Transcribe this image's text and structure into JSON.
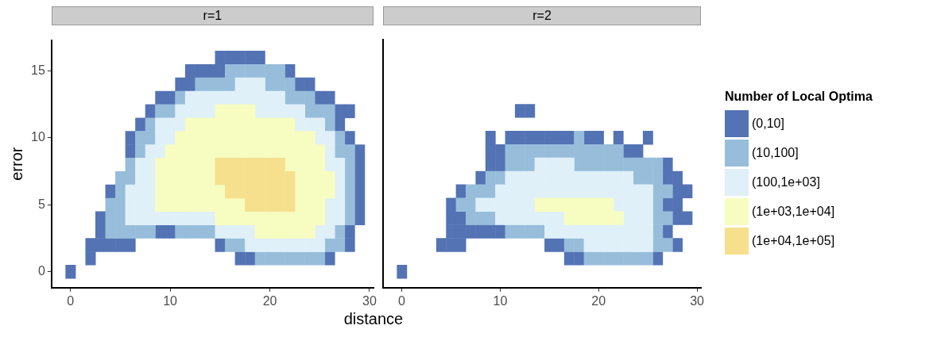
{
  "chart_data": [
    {
      "type": "scatter",
      "title": "r=1",
      "xlabel": "distance",
      "ylabel": "error",
      "marker": "square",
      "grid": false,
      "legend": false,
      "xlim": [
        -1.9,
        30.4
      ],
      "ylim": [
        -1.2,
        17.3
      ],
      "xticks": [
        0,
        10,
        20,
        30
      ],
      "yticks": [
        0,
        5,
        10,
        15
      ],
      "series": [
        {
          "color": "#5473b4",
          "x": [
            15,
            16,
            17,
            18,
            19,
            12,
            13,
            14,
            15,
            22,
            11,
            12,
            23,
            24,
            9,
            10,
            25,
            26,
            8,
            27,
            28,
            7,
            27,
            6,
            28,
            6,
            29,
            29,
            29,
            4,
            29,
            29,
            3,
            29,
            3,
            9,
            10,
            28,
            2,
            3,
            4,
            5,
            6,
            15,
            28,
            2,
            17,
            18,
            26,
            0
          ],
          "values": [
            16,
            16,
            16,
            16,
            16,
            15,
            15,
            15,
            15,
            15,
            14,
            14,
            14,
            14,
            13,
            13,
            13,
            13,
            12,
            12,
            12,
            11,
            11,
            10,
            10,
            9,
            9,
            8,
            7,
            6,
            6,
            5,
            4,
            4,
            3,
            3,
            3,
            3,
            2,
            2,
            2,
            2,
            2,
            2,
            2,
            1,
            1,
            1,
            1,
            0
          ]
        },
        {
          "color": "#97bddb",
          "x": [
            16,
            17,
            18,
            19,
            20,
            21,
            13,
            14,
            15,
            16,
            20,
            21,
            22,
            11,
            22,
            23,
            24,
            9,
            10,
            24,
            25,
            26,
            8,
            26,
            7,
            8,
            27,
            7,
            27,
            28,
            6,
            28,
            5,
            6,
            28,
            5,
            28,
            4,
            5,
            28,
            4,
            5,
            28,
            4,
            5,
            6,
            7,
            8,
            11,
            12,
            13,
            14,
            27,
            16,
            17,
            26,
            27,
            19,
            20,
            21,
            22,
            23,
            24,
            25
          ],
          "values": [
            15,
            15,
            15,
            15,
            15,
            15,
            14,
            14,
            14,
            14,
            14,
            14,
            14,
            13,
            13,
            13,
            13,
            12,
            12,
            12,
            12,
            12,
            11,
            11,
            10,
            10,
            10,
            9,
            9,
            9,
            8,
            8,
            7,
            7,
            7,
            6,
            6,
            5,
            5,
            5,
            4,
            4,
            4,
            3,
            3,
            3,
            3,
            3,
            3,
            3,
            3,
            3,
            3,
            2,
            2,
            2,
            2,
            1,
            1,
            1,
            1,
            1,
            1,
            1
          ]
        },
        {
          "color": "#e0f0f8",
          "x": [
            17,
            18,
            19,
            12,
            13,
            14,
            15,
            16,
            17,
            18,
            19,
            20,
            21,
            11,
            12,
            13,
            14,
            19,
            20,
            21,
            22,
            23,
            9,
            10,
            11,
            23,
            24,
            25,
            9,
            10,
            25,
            26,
            8,
            9,
            26,
            7,
            8,
            26,
            27,
            7,
            8,
            27,
            6,
            7,
            8,
            27,
            6,
            7,
            8,
            26,
            27,
            6,
            7,
            8,
            9,
            10,
            11,
            12,
            13,
            14,
            26,
            27,
            15,
            16,
            17,
            18,
            25,
            26,
            18,
            19,
            20,
            21,
            22,
            23,
            24,
            25
          ],
          "values": [
            14,
            14,
            14,
            13,
            13,
            13,
            13,
            13,
            13,
            13,
            13,
            13,
            13,
            12,
            12,
            12,
            12,
            12,
            12,
            12,
            12,
            12,
            11,
            11,
            11,
            11,
            11,
            11,
            10,
            10,
            10,
            10,
            9,
            9,
            9,
            8,
            8,
            8,
            8,
            7,
            7,
            7,
            6,
            6,
            6,
            6,
            5,
            5,
            5,
            5,
            5,
            4,
            4,
            4,
            4,
            4,
            4,
            4,
            4,
            4,
            4,
            4,
            3,
            3,
            3,
            3,
            3,
            3,
            2,
            2,
            2,
            2,
            2,
            2,
            2,
            2
          ]
        },
        {
          "color": "#f7fcc0",
          "x": [
            15,
            16,
            17,
            18,
            12,
            13,
            14,
            15,
            16,
            17,
            18,
            19,
            20,
            21,
            22,
            11,
            12,
            13,
            14,
            15,
            16,
            17,
            18,
            19,
            20,
            21,
            22,
            23,
            24,
            10,
            11,
            12,
            13,
            14,
            15,
            16,
            17,
            18,
            19,
            20,
            21,
            22,
            23,
            24,
            25,
            9,
            10,
            11,
            12,
            13,
            14,
            22,
            23,
            24,
            25,
            9,
            10,
            11,
            12,
            13,
            14,
            23,
            24,
            25,
            26,
            9,
            10,
            11,
            12,
            13,
            14,
            15,
            23,
            24,
            25,
            26,
            9,
            10,
            11,
            12,
            13,
            14,
            15,
            16,
            17,
            23,
            24,
            25,
            15,
            16,
            17,
            18,
            19,
            20,
            21,
            22,
            23,
            24,
            25,
            19,
            20,
            21,
            22,
            23,
            24
          ],
          "values": [
            12,
            12,
            12,
            12,
            11,
            11,
            11,
            11,
            11,
            11,
            11,
            11,
            11,
            11,
            11,
            10,
            10,
            10,
            10,
            10,
            10,
            10,
            10,
            10,
            10,
            10,
            10,
            10,
            10,
            9,
            9,
            9,
            9,
            9,
            9,
            9,
            9,
            9,
            9,
            9,
            9,
            9,
            9,
            9,
            9,
            8,
            8,
            8,
            8,
            8,
            8,
            8,
            8,
            8,
            8,
            7,
            7,
            7,
            7,
            7,
            7,
            7,
            7,
            7,
            7,
            6,
            6,
            6,
            6,
            6,
            6,
            6,
            6,
            6,
            6,
            6,
            5,
            5,
            5,
            5,
            5,
            5,
            5,
            5,
            5,
            5,
            5,
            5,
            4,
            4,
            4,
            4,
            4,
            4,
            4,
            4,
            4,
            4,
            4,
            3,
            3,
            3,
            3,
            3,
            3
          ]
        },
        {
          "color": "#f6e08e",
          "x": [
            15,
            16,
            17,
            18,
            19,
            20,
            21,
            15,
            16,
            17,
            18,
            19,
            20,
            21,
            22,
            16,
            17,
            18,
            19,
            20,
            21,
            22,
            18,
            19,
            20,
            21,
            22
          ],
          "values": [
            8,
            8,
            8,
            8,
            8,
            8,
            8,
            7,
            7,
            7,
            7,
            7,
            7,
            7,
            7,
            6,
            6,
            6,
            6,
            6,
            6,
            6,
            5,
            5,
            5,
            5,
            5
          ]
        }
      ]
    },
    {
      "type": "scatter",
      "title": "r=2",
      "marker": "square",
      "grid": false,
      "legend": "right",
      "legend_title": "Number of Local Optima",
      "tick_labels": "x",
      "xlim": [
        -1.9,
        30.4
      ],
      "ylim": [
        -1.2,
        17.3
      ],
      "xticks": [
        0,
        10,
        20,
        30
      ],
      "yticks": [
        0,
        5,
        10,
        15
      ],
      "series": [
        {
          "name": "(0,10]",
          "color": "#5473b4",
          "x": [
            12,
            13,
            9,
            11,
            12,
            13,
            14,
            15,
            16,
            17,
            19,
            20,
            22,
            25,
            9,
            10,
            23,
            24,
            9,
            10,
            27,
            8,
            27,
            28,
            6,
            28,
            29,
            5,
            27,
            28,
            5,
            6,
            28,
            29,
            5,
            6,
            7,
            8,
            9,
            10,
            27,
            4,
            5,
            6,
            15,
            16,
            28,
            17,
            18,
            26,
            0
          ],
          "values": [
            12,
            12,
            10,
            10,
            10,
            10,
            10,
            10,
            10,
            10,
            10,
            10,
            10,
            10,
            9,
            9,
            9,
            9,
            8,
            8,
            8,
            7,
            7,
            7,
            6,
            6,
            6,
            5,
            5,
            5,
            4,
            4,
            4,
            4,
            3,
            3,
            3,
            3,
            3,
            3,
            3,
            2,
            2,
            2,
            2,
            2,
            2,
            1,
            1,
            1,
            0
          ]
        },
        {
          "name": "(10,100]",
          "color": "#97bddb",
          "x": [
            18,
            11,
            12,
            13,
            14,
            15,
            16,
            17,
            18,
            19,
            20,
            21,
            22,
            11,
            12,
            13,
            18,
            19,
            20,
            21,
            22,
            23,
            24,
            25,
            26,
            9,
            10,
            24,
            25,
            26,
            7,
            8,
            9,
            26,
            27,
            6,
            7,
            26,
            7,
            8,
            9,
            26,
            27,
            11,
            12,
            13,
            14,
            26,
            17,
            18,
            26,
            27,
            19,
            20,
            21,
            22,
            23,
            24,
            25
          ],
          "values": [
            10,
            9,
            9,
            9,
            9,
            9,
            9,
            9,
            9,
            9,
            9,
            9,
            9,
            8,
            8,
            8,
            8,
            8,
            8,
            8,
            8,
            8,
            8,
            8,
            8,
            7,
            7,
            7,
            7,
            7,
            6,
            6,
            6,
            6,
            6,
            5,
            5,
            5,
            4,
            4,
            4,
            4,
            4,
            3,
            3,
            3,
            3,
            3,
            2,
            2,
            2,
            2,
            1,
            1,
            1,
            1,
            1,
            1,
            1
          ]
        },
        {
          "name": "(100,1e+03]",
          "color": "#e0f0f8",
          "x": [
            14,
            15,
            16,
            17,
            11,
            12,
            13,
            14,
            15,
            16,
            17,
            18,
            19,
            20,
            21,
            22,
            23,
            10,
            11,
            12,
            13,
            14,
            15,
            16,
            17,
            18,
            19,
            20,
            21,
            22,
            23,
            24,
            25,
            8,
            9,
            10,
            11,
            12,
            13,
            22,
            23,
            24,
            25,
            10,
            11,
            12,
            13,
            14,
            15,
            16,
            23,
            24,
            25,
            15,
            16,
            17,
            18,
            19,
            20,
            21,
            22,
            23,
            24,
            25,
            19,
            20,
            21,
            22,
            23,
            24,
            25
          ],
          "values": [
            8,
            8,
            8,
            8,
            7,
            7,
            7,
            7,
            7,
            7,
            7,
            7,
            7,
            7,
            7,
            7,
            7,
            6,
            6,
            6,
            6,
            6,
            6,
            6,
            6,
            6,
            6,
            6,
            6,
            6,
            6,
            6,
            6,
            5,
            5,
            5,
            5,
            5,
            5,
            5,
            5,
            5,
            5,
            4,
            4,
            4,
            4,
            4,
            4,
            4,
            4,
            4,
            4,
            3,
            3,
            3,
            3,
            3,
            3,
            3,
            3,
            3,
            3,
            3,
            2,
            2,
            2,
            2,
            2,
            2,
            2
          ]
        },
        {
          "name": "(1e+03,1e+04]",
          "color": "#f7fcc0",
          "x": [
            14,
            15,
            16,
            17,
            18,
            19,
            20,
            21,
            17,
            18,
            19,
            20,
            21,
            22
          ],
          "values": [
            5,
            5,
            5,
            5,
            5,
            5,
            5,
            5,
            4,
            4,
            4,
            4,
            4,
            4
          ]
        },
        {
          "name": "(1e+04,1e+05]",
          "color": "#f6e08e"
        }
      ]
    }
  ]
}
